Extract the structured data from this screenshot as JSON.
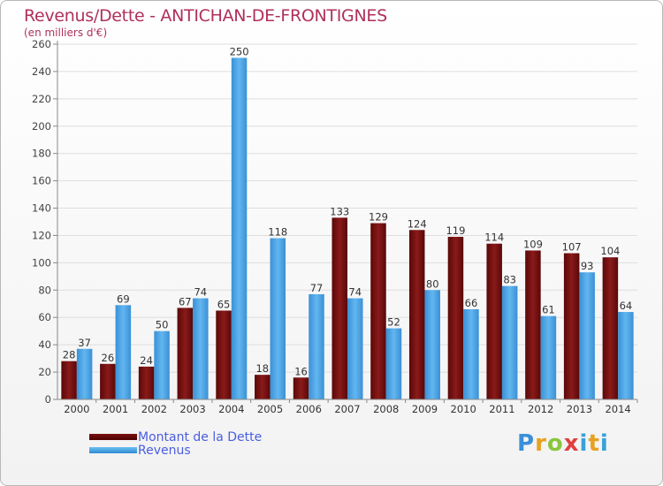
{
  "header": {
    "title": "Revenus/Dette - ANTICHAN-DE-FRONTIGNES",
    "subtitle": "(en milliers d'€)"
  },
  "chart_data": {
    "type": "bar",
    "title": "Revenus/Dette - ANTICHAN-DE-FRONTIGNES",
    "ylabel": "(en milliers d'€)",
    "xlabel": "",
    "categories": [
      "2000",
      "2001",
      "2002",
      "2003",
      "2004",
      "2005",
      "2006",
      "2007",
      "2008",
      "2009",
      "2010",
      "2011",
      "2012",
      "2013",
      "2014"
    ],
    "series": [
      {
        "name": "Montant de la Dette",
        "color": "#7a1414",
        "values": [
          28,
          26,
          24,
          67,
          65,
          18,
          16,
          133,
          129,
          124,
          119,
          114,
          109,
          107,
          104
        ]
      },
      {
        "name": "Revenus",
        "color": "#4aa6e8",
        "values": [
          37,
          69,
          50,
          74,
          250,
          118,
          77,
          74,
          52,
          80,
          66,
          83,
          61,
          93,
          64
        ]
      }
    ],
    "ylim": [
      0,
      260
    ],
    "yticks": [
      0,
      20,
      40,
      60,
      80,
      100,
      120,
      140,
      160,
      180,
      200,
      220,
      240,
      260
    ],
    "grid": true,
    "legend_position": "bottom-left"
  },
  "legend": {
    "dette_label": "Montant de la Dette",
    "revenus_label": "Revenus"
  },
  "logo": {
    "text": "Proxiti"
  }
}
